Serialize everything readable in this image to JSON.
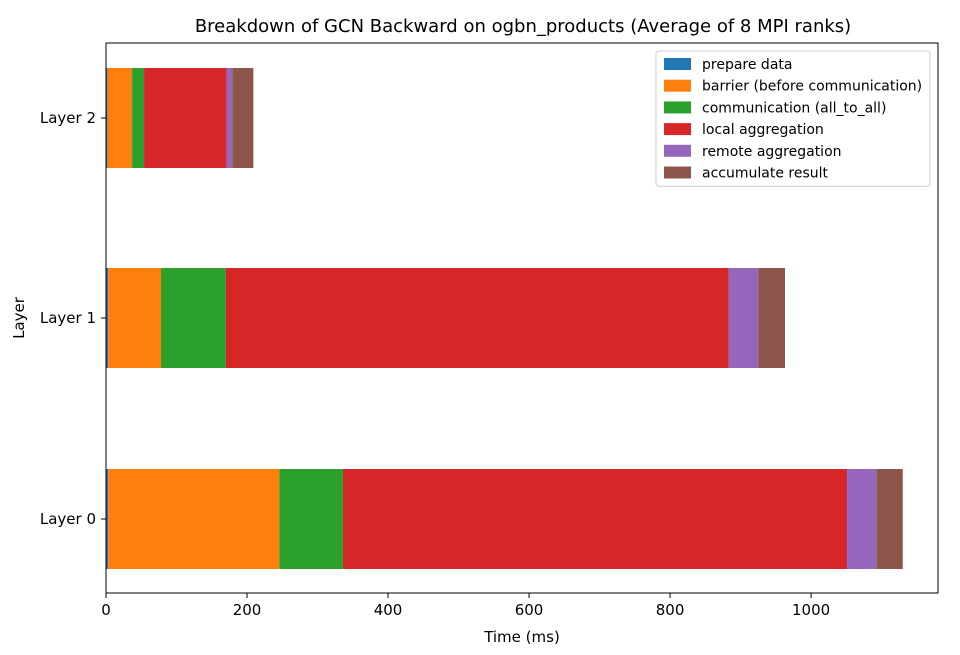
{
  "chart_data": {
    "type": "bar",
    "orientation": "horizontal",
    "stacked": true,
    "title": "Breakdown of GCN Backward on ogbn_products (Average of 8 MPI ranks)",
    "xlabel": "Time (ms)",
    "ylabel": "Layer",
    "xlim": [
      0,
      1180
    ],
    "xticks": [
      0,
      200,
      400,
      600,
      800,
      1000
    ],
    "categories": [
      "Layer 0",
      "Layer 1",
      "Layer 2"
    ],
    "grid": false,
    "legend_position": "top-right",
    "series": [
      {
        "name": "prepare data",
        "color": "#1f77b4",
        "values": [
          3,
          3,
          2
        ]
      },
      {
        "name": "barrier (before communication)",
        "color": "#ff7f0e",
        "values": [
          243,
          75,
          35
        ]
      },
      {
        "name": "communication (all_to_all)",
        "color": "#2ca02c",
        "values": [
          90,
          92,
          17
        ]
      },
      {
        "name": "local aggregation",
        "color": "#d62728",
        "values": [
          715,
          713,
          117
        ]
      },
      {
        "name": "remote aggregation",
        "color": "#9467bd",
        "values": [
          42,
          42,
          8
        ]
      },
      {
        "name": "accumulate result",
        "color": "#8c564b",
        "values": [
          37,
          38,
          30
        ]
      }
    ]
  }
}
